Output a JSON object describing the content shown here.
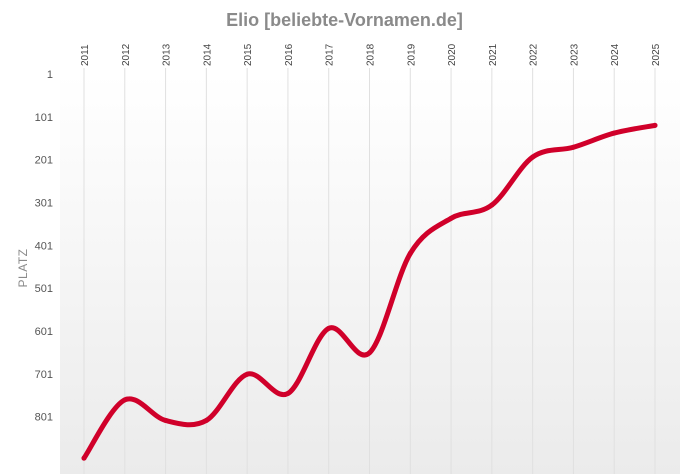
{
  "chart_data": {
    "type": "line",
    "title": "Elio [beliebte-Vornamen.de]",
    "ylabel": "PLATZ",
    "xlabel": "",
    "x": [
      "2011",
      "2012",
      "2013",
      "2014",
      "2015",
      "2016",
      "2017",
      "2018",
      "2019",
      "2020",
      "2021",
      "2022",
      "2023",
      "2024",
      "2025"
    ],
    "series": [
      {
        "values": [
          898,
          762,
          810,
          810,
          702,
          747,
          595,
          652,
          420,
          338,
          307,
          195,
          172,
          139,
          121
        ]
      }
    ],
    "y_ticks": [
      1,
      101,
      201,
      301,
      401,
      501,
      601,
      701,
      801
    ],
    "ylim": [
      1,
      900
    ],
    "y_inverted": true,
    "grid": "vertical",
    "colors": {
      "line": "#d0002a",
      "title": "#8a8a8a",
      "grid": "#e0e0e0"
    }
  }
}
